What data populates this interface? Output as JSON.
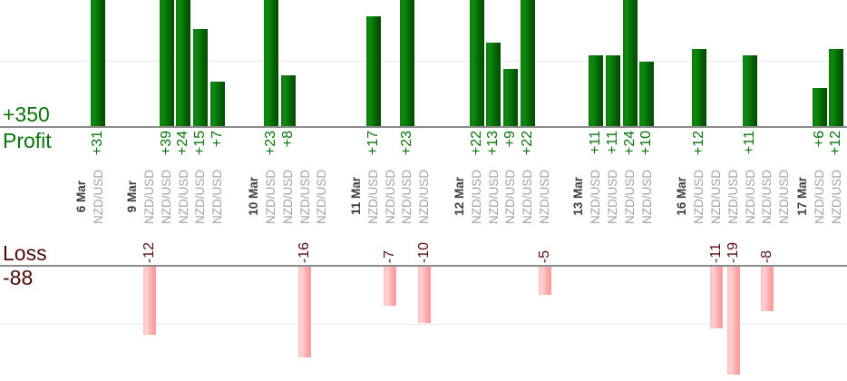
{
  "chart_data": {
    "type": "bar",
    "title": "",
    "profit_section": {
      "label": "Profit",
      "total_label": "+350",
      "total": 350
    },
    "loss_section": {
      "label": "Loss",
      "total_label": "-88",
      "total": -88
    },
    "profit_gridline_value": 10,
    "loss_gridline_value": -10,
    "baseline_value": 0,
    "grid": "horizontal, one light line per section at ±10",
    "legend_position": "none",
    "groups": [
      {
        "date": "6 Mar",
        "trades": [
          {
            "instrument": "NZD/USD",
            "value": 31
          }
        ]
      },
      {
        "date": "9 Mar",
        "trades": [
          {
            "instrument": "NZD/USD",
            "value": -12
          },
          {
            "instrument": "NZD/USD",
            "value": 39
          },
          {
            "instrument": "NZD/USD",
            "value": 24
          },
          {
            "instrument": "NZD/USD",
            "value": 15
          },
          {
            "instrument": "NZD/USD",
            "value": 7
          }
        ]
      },
      {
        "date": "10 Mar",
        "trades": [
          {
            "instrument": "NZD/USD",
            "value": 23
          },
          {
            "instrument": "NZD/USD",
            "value": 8
          },
          {
            "instrument": "NZD/USD",
            "value": -16
          },
          {
            "instrument": "NZD/USD",
            "value": 0
          }
        ]
      },
      {
        "date": "11 Mar",
        "trades": [
          {
            "instrument": "NZD/USD",
            "value": 17
          },
          {
            "instrument": "NZD/USD",
            "value": -7
          },
          {
            "instrument": "NZD/USD",
            "value": 23
          },
          {
            "instrument": "NZD/USD",
            "value": -10
          }
        ]
      },
      {
        "date": "12 Mar",
        "trades": [
          {
            "instrument": "NZD/USD",
            "value": 22
          },
          {
            "instrument": "NZD/USD",
            "value": 13
          },
          {
            "instrument": "NZD/USD",
            "value": 9
          },
          {
            "instrument": "NZD/USD",
            "value": 22
          },
          {
            "instrument": "NZD/USD",
            "value": -5
          }
        ]
      },
      {
        "date": "13 Mar",
        "trades": [
          {
            "instrument": "NZD/USD",
            "value": 11
          },
          {
            "instrument": "NZD/USD",
            "value": 11
          },
          {
            "instrument": "NZD/USD",
            "value": 24
          },
          {
            "instrument": "NZD/USD",
            "value": 10
          }
        ]
      },
      {
        "date": "16 Mar",
        "trades": [
          {
            "instrument": "NZD/USD",
            "value": 12
          },
          {
            "instrument": "NZD/USD",
            "value": -11
          },
          {
            "instrument": "NZD/USD",
            "value": -19
          },
          {
            "instrument": "NZD/USD",
            "value": 11
          },
          {
            "instrument": "NZD/USD",
            "value": -8
          },
          {
            "instrument": "NZD/USD",
            "value": 0
          }
        ]
      },
      {
        "date": "17 Mar",
        "trades": [
          {
            "instrument": "NZD/USD",
            "value": 6
          },
          {
            "instrument": "NZD/USD",
            "value": 12
          }
        ]
      }
    ],
    "colors": {
      "profit_bar": "#0a7a0a",
      "profit_text": "#077507",
      "loss_bar_fill": "#ffbaba",
      "loss_value_text": "#5c0d0d",
      "loss_section_text": "#4d0808",
      "date_text": "#3d3d3d",
      "instrument_text": "#a2a2a2",
      "axis_line": "#8b8b8b",
      "gridline": "#e9e9e9"
    }
  }
}
